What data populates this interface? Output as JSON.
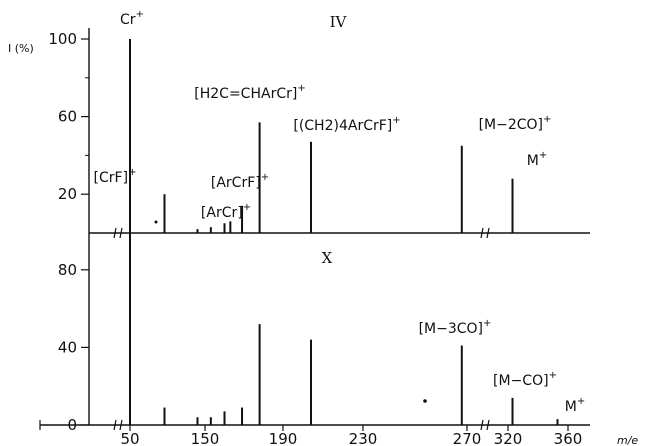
{
  "chart_data": {
    "type": "bar",
    "xlabel": "m/e",
    "ylabel": "I (%)",
    "x_ticks": [
      "50",
      "150",
      "190",
      "230",
      "270",
      "320",
      "360"
    ],
    "x_tick_values": [
      50,
      150,
      190,
      230,
      270,
      320,
      360
    ],
    "panels": [
      {
        "name": "IV",
        "y_ticks": [
          20,
          60,
          100
        ],
        "ylim": [
          0,
          100
        ],
        "peaks": [
          {
            "mz": 50,
            "intensity": 100,
            "label": "Cr",
            "sup": "+"
          },
          {
            "mz": 96,
            "intensity": 20,
            "label": "[CrF]",
            "sup": "+"
          },
          {
            "mz": 140,
            "intensity": 2
          },
          {
            "mz": 153,
            "intensity": 3
          },
          {
            "mz": 160,
            "intensity": 5
          },
          {
            "mz": 169,
            "intensity": 14,
            "label": "[ArCrF]",
            "sup": "+"
          },
          {
            "mz": 163,
            "intensity": 6,
            "label": "[ArCr]",
            "sup": "+"
          },
          {
            "mz": 178,
            "intensity": 57,
            "label": "[H2C=CHArCr]",
            "sup": "+"
          },
          {
            "mz": 204,
            "intensity": 47,
            "label": "[(CH2)4ArCrF]",
            "sup": "+"
          },
          {
            "mz": 268,
            "intensity": 45,
            "label": "[M−2CO]",
            "sup": "+"
          },
          {
            "mz": 323,
            "intensity": 28,
            "label": "M",
            "sup": "+"
          }
        ]
      },
      {
        "name": "X",
        "y_ticks": [
          0,
          40,
          80
        ],
        "ylim": [
          0,
          100
        ],
        "peaks": [
          {
            "mz": 50,
            "intensity": 100
          },
          {
            "mz": 96,
            "intensity": 9
          },
          {
            "mz": 140,
            "intensity": 4
          },
          {
            "mz": 153,
            "intensity": 4
          },
          {
            "mz": 160,
            "intensity": 7
          },
          {
            "mz": 169,
            "intensity": 9
          },
          {
            "mz": 178,
            "intensity": 52
          },
          {
            "mz": 204,
            "intensity": 44
          },
          {
            "mz": 268,
            "intensity": 41,
            "label": "[M−3CO]",
            "sup": "+"
          },
          {
            "mz": 323,
            "intensity": 14,
            "label": "[M−CO]",
            "sup": "+"
          },
          {
            "mz": 353,
            "intensity": 3,
            "label": "M",
            "sup": "+"
          }
        ]
      }
    ]
  }
}
